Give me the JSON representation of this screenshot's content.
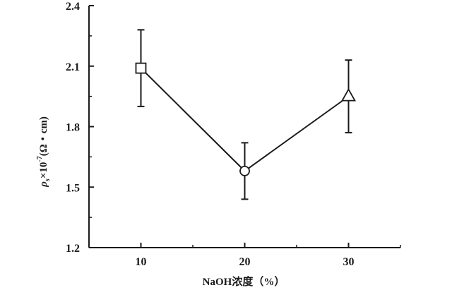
{
  "chart_data": {
    "type": "line",
    "title": "",
    "xlabel": "NaOH浓度（%）",
    "ylabel_parts": {
      "symbol": "ρ",
      "subscript": "s",
      "multiplier": "×10",
      "exponent": "-7",
      "unit": "(Ω・cm)"
    },
    "x": [
      10,
      20,
      30
    ],
    "xlim": [
      5,
      35
    ],
    "ylim": [
      1.2,
      2.4
    ],
    "x_ticks": [
      10,
      20,
      30
    ],
    "x_tick_labels": [
      "10",
      "20",
      "30"
    ],
    "y_ticks": [
      1.2,
      1.5,
      1.8,
      2.1,
      2.4
    ],
    "y_tick_labels": [
      "1.2",
      "1.5",
      "1.8",
      "2.1",
      "2.4"
    ],
    "grid": false,
    "series": [
      {
        "values": [
          2.09,
          1.58,
          1.95
        ],
        "error_upper": [
          2.28,
          1.72,
          2.13
        ],
        "error_lower": [
          1.9,
          1.44,
          1.77
        ],
        "markers": [
          "square",
          "circle",
          "triangle"
        ],
        "color": "#1a1a1a"
      }
    ]
  }
}
